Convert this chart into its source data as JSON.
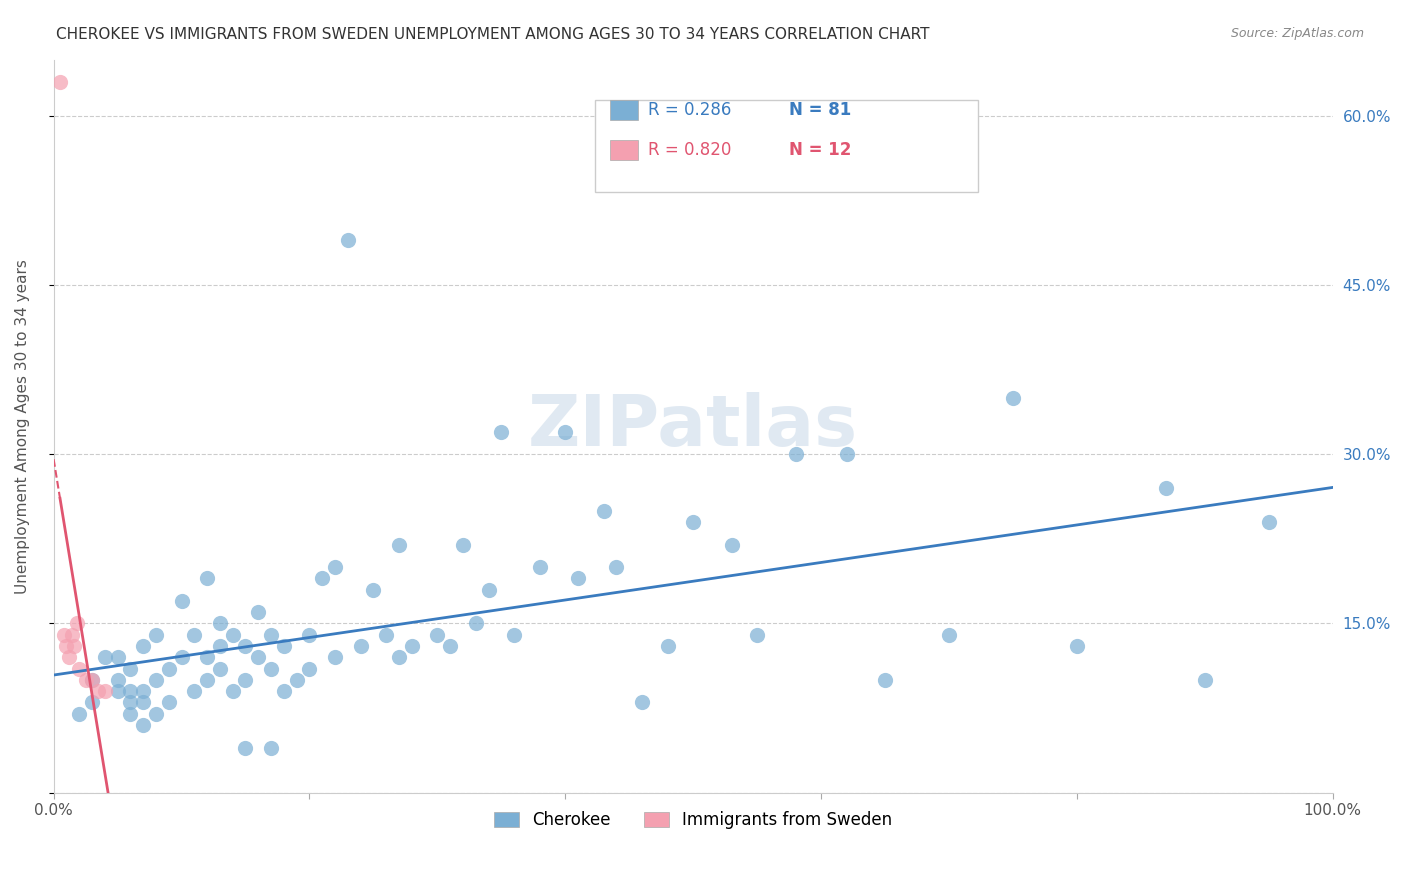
{
  "title": "CHEROKEE VS IMMIGRANTS FROM SWEDEN UNEMPLOYMENT AMONG AGES 30 TO 34 YEARS CORRELATION CHART",
  "source": "Source: ZipAtlas.com",
  "ylabel": "Unemployment Among Ages 30 to 34 years",
  "xlim": [
    0.0,
    1.0
  ],
  "ylim": [
    0.0,
    0.65
  ],
  "cherokee_color": "#7bafd4",
  "sweden_color": "#f4a0b0",
  "trend_cherokee_color": "#3a7bbf",
  "trend_sweden_color": "#e05570",
  "cherokee_x": [
    0.02,
    0.03,
    0.03,
    0.04,
    0.05,
    0.05,
    0.05,
    0.06,
    0.06,
    0.06,
    0.06,
    0.07,
    0.07,
    0.07,
    0.07,
    0.08,
    0.08,
    0.08,
    0.09,
    0.09,
    0.1,
    0.1,
    0.11,
    0.11,
    0.12,
    0.12,
    0.12,
    0.13,
    0.13,
    0.13,
    0.14,
    0.14,
    0.15,
    0.15,
    0.15,
    0.16,
    0.16,
    0.17,
    0.17,
    0.17,
    0.18,
    0.18,
    0.19,
    0.2,
    0.2,
    0.21,
    0.22,
    0.22,
    0.23,
    0.24,
    0.25,
    0.26,
    0.27,
    0.27,
    0.28,
    0.3,
    0.31,
    0.32,
    0.33,
    0.34,
    0.35,
    0.36,
    0.38,
    0.4,
    0.41,
    0.43,
    0.44,
    0.46,
    0.48,
    0.5,
    0.53,
    0.55,
    0.58,
    0.62,
    0.65,
    0.7,
    0.75,
    0.8,
    0.87,
    0.9,
    0.95
  ],
  "cherokee_y": [
    0.07,
    0.08,
    0.1,
    0.12,
    0.09,
    0.1,
    0.12,
    0.07,
    0.08,
    0.09,
    0.11,
    0.06,
    0.08,
    0.09,
    0.13,
    0.07,
    0.1,
    0.14,
    0.08,
    0.11,
    0.12,
    0.17,
    0.09,
    0.14,
    0.1,
    0.12,
    0.19,
    0.11,
    0.13,
    0.15,
    0.09,
    0.14,
    0.1,
    0.13,
    0.04,
    0.12,
    0.16,
    0.04,
    0.11,
    0.14,
    0.09,
    0.13,
    0.1,
    0.11,
    0.14,
    0.19,
    0.12,
    0.2,
    0.49,
    0.13,
    0.18,
    0.14,
    0.12,
    0.22,
    0.13,
    0.14,
    0.13,
    0.22,
    0.15,
    0.18,
    0.32,
    0.14,
    0.2,
    0.32,
    0.19,
    0.25,
    0.2,
    0.08,
    0.13,
    0.24,
    0.22,
    0.14,
    0.3,
    0.3,
    0.1,
    0.14,
    0.35,
    0.13,
    0.27,
    0.1,
    0.24
  ],
  "sweden_x": [
    0.005,
    0.008,
    0.01,
    0.012,
    0.014,
    0.016,
    0.018,
    0.02,
    0.025,
    0.03,
    0.035,
    0.04
  ],
  "sweden_y": [
    0.63,
    0.14,
    0.13,
    0.12,
    0.14,
    0.13,
    0.15,
    0.11,
    0.1,
    0.1,
    0.09,
    0.09
  ],
  "background_color": "#ffffff",
  "grid_color": "#cccccc",
  "title_fontsize": 11,
  "axis_label_fontsize": 11,
  "tick_fontsize": 11,
  "legend_fontsize": 12,
  "watermark_text": "ZIPatlas"
}
